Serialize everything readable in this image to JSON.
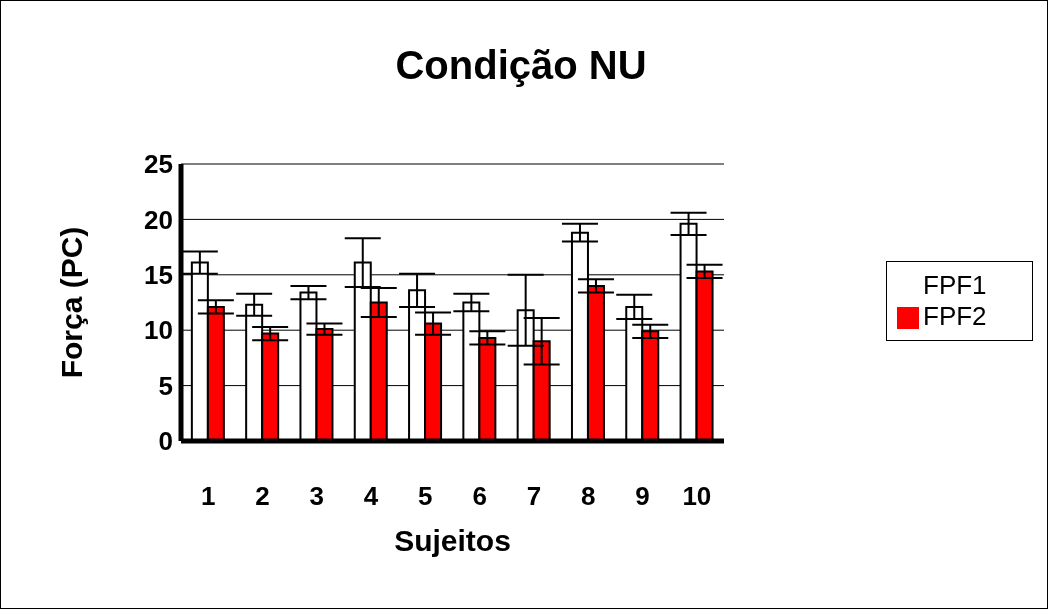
{
  "chart_data": {
    "type": "bar",
    "title": "Condição NU",
    "xlabel": "Sujeitos",
    "ylabel": "Força (PC)",
    "categories": [
      "1",
      "2",
      "3",
      "4",
      "5",
      "6",
      "7",
      "8",
      "9",
      "10"
    ],
    "series": [
      {
        "name": "FPF1",
        "color": "#ffffff",
        "values": [
          16.1,
          12.3,
          13.4,
          16.1,
          13.6,
          12.5,
          11.8,
          18.8,
          12.1,
          19.6
        ],
        "errors": [
          1.0,
          1.0,
          0.6,
          2.2,
          1.5,
          0.8,
          3.2,
          0.8,
          1.1,
          1.0
        ]
      },
      {
        "name": "FPF2",
        "color": "#ff0000",
        "values": [
          12.1,
          9.7,
          10.1,
          12.5,
          10.6,
          9.3,
          9.0,
          14.0,
          9.9,
          15.3
        ],
        "errors": [
          0.6,
          0.6,
          0.5,
          1.3,
          1.0,
          0.6,
          2.1,
          0.6,
          0.6,
          0.6
        ]
      }
    ],
    "ylim": [
      0,
      25
    ],
    "yticks": [
      0,
      5,
      10,
      15,
      20,
      25
    ],
    "grid": "y",
    "legend": "right"
  }
}
